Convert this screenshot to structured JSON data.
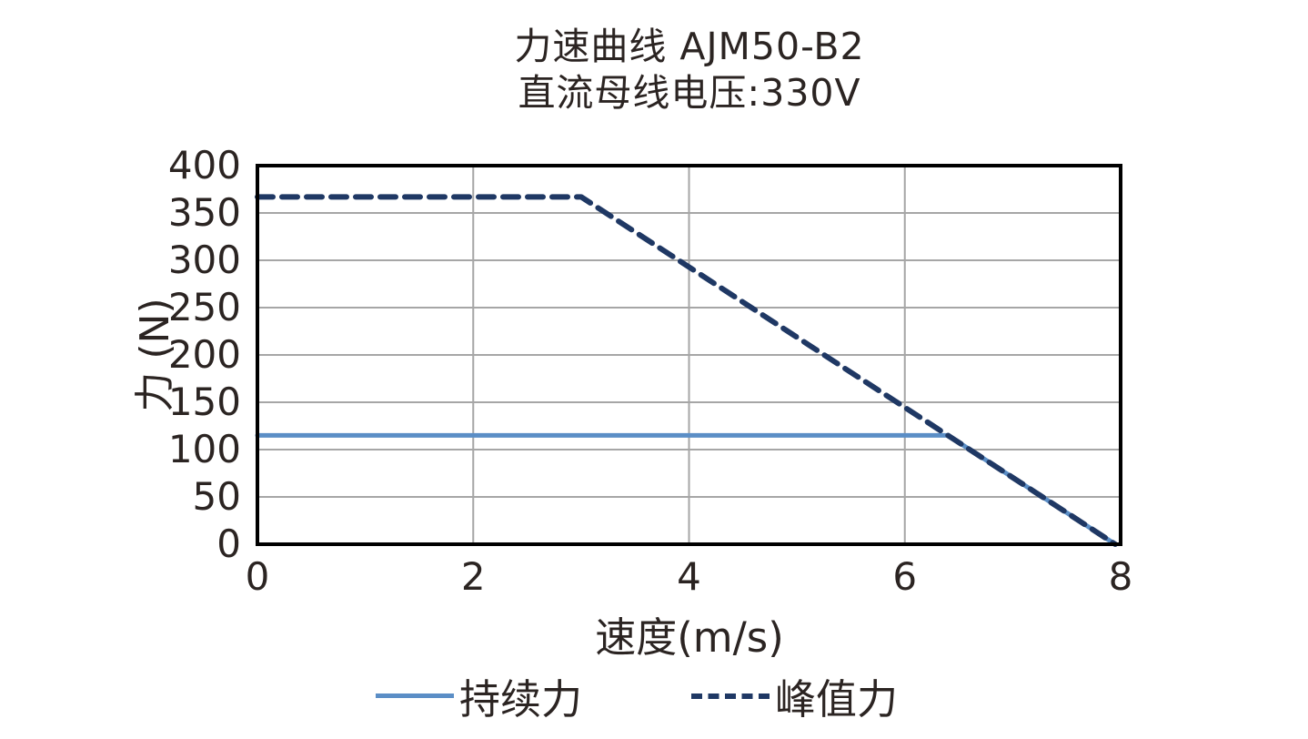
{
  "title": {
    "line1": "力速曲线 AJM50-B2",
    "line2": "直流母线电压:330V"
  },
  "chart_data": {
    "type": "line",
    "title": "力速曲线 AJM50-B2",
    "subtitle": "直流母线电压:330V",
    "xlabel": "速度(m/s)",
    "ylabel": "力 (N)",
    "xlim": [
      0,
      8
    ],
    "ylim": [
      0,
      400
    ],
    "x_ticks": [
      0,
      2,
      4,
      6,
      8
    ],
    "y_ticks": [
      0,
      50,
      100,
      150,
      200,
      250,
      300,
      350,
      400
    ],
    "grid": true,
    "legend_position": "bottom",
    "series": [
      {
        "name": "持续力",
        "style": "solid",
        "color": "#5B8EC6",
        "points": [
          [
            0,
            115
          ],
          [
            6.4,
            115
          ],
          [
            7.95,
            0
          ]
        ]
      },
      {
        "name": "峰值力",
        "style": "dashed",
        "color": "#1F3864",
        "points": [
          [
            0,
            367
          ],
          [
            3,
            367
          ],
          [
            7.95,
            0
          ]
        ]
      }
    ]
  },
  "colors": {
    "continuous_force": "#5B8EC6",
    "peak_force": "#1F3864",
    "gridline": "#A6A6A6",
    "frame": "#000000",
    "text": "#2b2422",
    "background": "#ffffff"
  }
}
